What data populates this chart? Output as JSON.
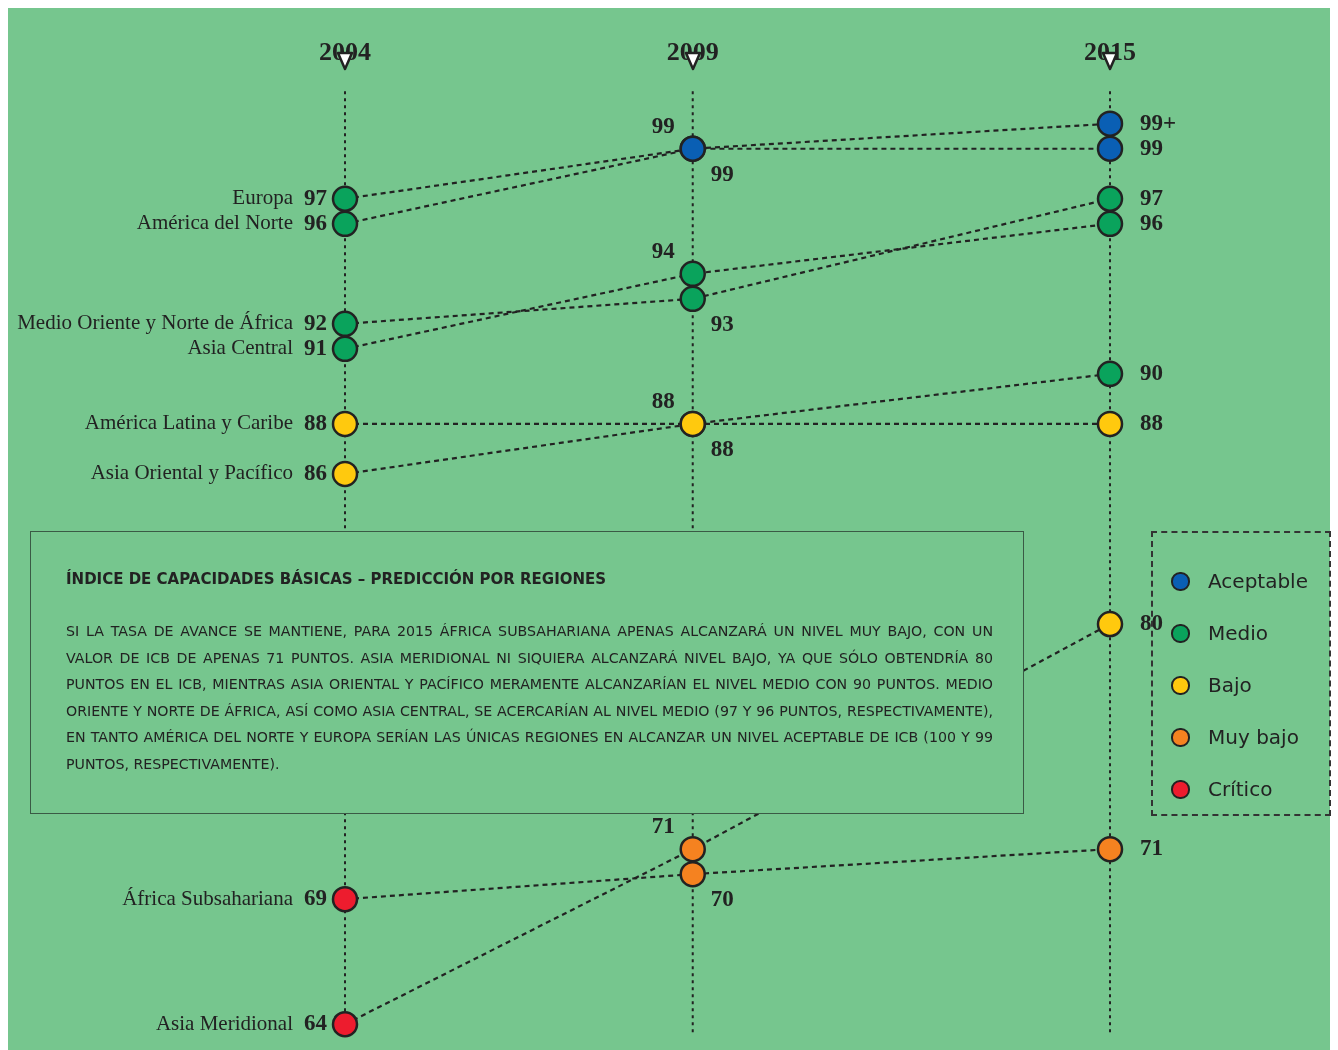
{
  "chart_data": {
    "type": "line",
    "title": "ÍNDICE DE CAPACIDADES BÁSICAS – PREDICCIÓN POR REGIONES",
    "annotations": [
      "SI LA TASA DE AVANCE SE MANTIENE, PARA 2015 ÁFRICA SUBSAHARIANA APENAS ALCANZARÁ UN NIVEL MUY BAJO, CON UN VALOR DE ICB DE APENAS 71 PUNTOS. ASIA MERIDIONAL NI SIQUIERA ALCANZARÁ NIVEL BAJO, YA QUE SÓLO OBTENDRÍA 80 PUNTOS EN EL ICB, MIENTRAS ASIA ORIENTAL Y PACÍFICO MERAMENTE ALCANZARÍAN EL NIVEL MEDIO CON 90 PUNTOS. MEDIO ORIENTE Y NORTE DE ÁFRICA, ASÍ COMO ASIA CENTRAL, SE ACERCARÍAN AL NIVEL MEDIO (97 Y 96 PUNTOS, RESPECTIVAMENTE), EN TANTO AMÉRICA DEL NORTE Y EUROPA SERÍAN LAS ÚNICAS REGIONES EN ALCANZAR UN NIVEL ACEPTABLE DE ICB (100 Y 99 PUNTOS, RESPECTIVAMENTE)."
    ],
    "x": [
      2004,
      2009,
      2015
    ],
    "xlim": [
      2004,
      2015
    ],
    "xticks": [
      2004,
      2009,
      2015
    ],
    "ref_lines": [
      {
        "axis": "x",
        "value": 2004,
        "line_style": "dotted"
      },
      {
        "axis": "x",
        "value": 2009,
        "line_style": "dotted"
      },
      {
        "axis": "x",
        "value": 2015,
        "line_style": "dotted"
      }
    ],
    "legend": "right",
    "marker": "circle",
    "line_style": "dashed",
    "data_labels": true,
    "series": [
      {
        "name": "Europa",
        "color": "#222222",
        "values": [
          97,
          99,
          99
        ],
        "colors": [
          "#0aa35c",
          "#0a5fb4",
          "#0a5fb4"
        ]
      },
      {
        "name": "América del Norte",
        "color": "#222222",
        "values": [
          96,
          99,
          100
        ],
        "value_labels": [
          "96",
          "99",
          "99+"
        ],
        "colors": [
          "#0aa35c",
          "#0a5fb4",
          "#0a5fb4"
        ]
      },
      {
        "name": "Medio Oriente y Norte de África",
        "color": "#222222",
        "values": [
          92,
          93,
          97
        ],
        "colors": [
          "#0aa35c",
          "#0aa35c",
          "#0aa35c"
        ]
      },
      {
        "name": "Asia Central",
        "color": "#222222",
        "values": [
          91,
          94,
          96
        ],
        "colors": [
          "#0aa35c",
          "#0aa35c",
          "#0aa35c"
        ]
      },
      {
        "name": "América Latina y Caribe",
        "color": "#222222",
        "values": [
          88,
          88,
          88
        ],
        "colors": [
          "#ffc90e",
          "#ffc90e",
          "#ffc90e"
        ]
      },
      {
        "name": "Asia Oriental y Pacífico",
        "color": "#222222",
        "values": [
          86,
          88,
          90
        ],
        "colors": [
          "#ffc90e",
          "#ffc90e",
          "#0aa35c"
        ]
      },
      {
        "name": "África Subsahariana",
        "color": "#222222",
        "values": [
          69,
          70,
          71
        ],
        "colors": [
          "#ed1c2e",
          "#f58220",
          "#f58220"
        ]
      },
      {
        "name": "Asia Meridional",
        "color": "#222222",
        "values": [
          64,
          71,
          80
        ],
        "colors": [
          "#ed1c2e",
          "#f58220",
          "#ffc90e"
        ]
      },
      {
        "type": "scatter",
        "name": "Aceptable",
        "color": "#0a5fb4",
        "values": [
          null,
          null,
          null
        ]
      },
      {
        "type": "scatter",
        "name": "Medio",
        "color": "#0aa35c",
        "values": [
          null,
          null,
          null
        ]
      },
      {
        "type": "scatter",
        "name": "Bajo",
        "color": "#ffc90e",
        "values": [
          null,
          null,
          null
        ]
      },
      {
        "type": "scatter",
        "name": "Muy bajo",
        "color": "#f58220",
        "values": [
          null,
          null,
          null
        ]
      },
      {
        "type": "scatter",
        "name": "Crítico",
        "color": "#ed1c2e",
        "values": [
          null,
          null,
          null
        ]
      }
    ]
  }
}
